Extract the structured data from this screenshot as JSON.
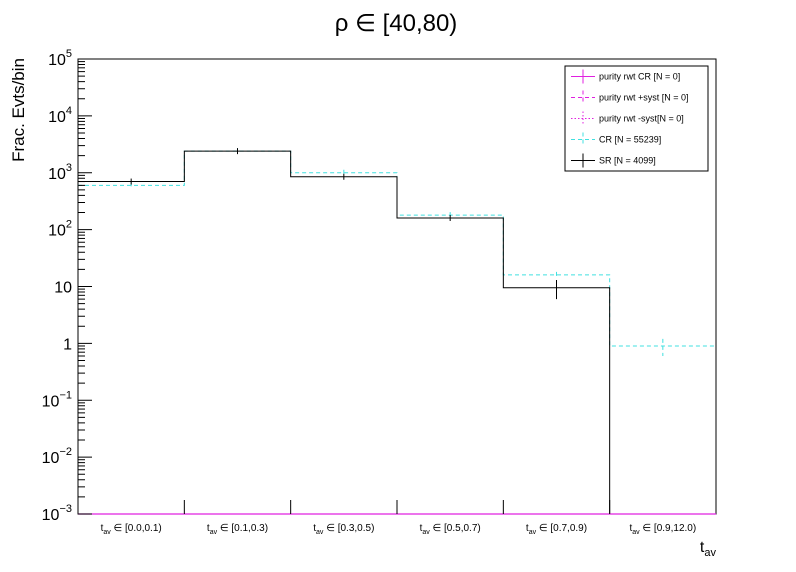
{
  "chart_data": {
    "type": "histogram",
    "title": "ρ ∈ [40,80)",
    "ylabel": "Frac. Evts/bin",
    "xlabel": "t",
    "xlabel_sub": "av",
    "y_scale": "log",
    "ylim": [
      0.001,
      100000
    ],
    "y_ticks": [
      {
        "value": 100000,
        "base": "10",
        "exp": "5"
      },
      {
        "value": 10000,
        "base": "10",
        "exp": "4"
      },
      {
        "value": 1000,
        "base": "10",
        "exp": "3"
      },
      {
        "value": 100,
        "base": "10",
        "exp": "2"
      },
      {
        "value": 10,
        "base": "10",
        "exp": ""
      },
      {
        "value": 1,
        "base": "1",
        "exp": ""
      },
      {
        "value": 0.1,
        "base": "10",
        "exp": "−1"
      },
      {
        "value": 0.01,
        "base": "10",
        "exp": "−2"
      },
      {
        "value": 0.001,
        "base": "10",
        "exp": "−3"
      }
    ],
    "categories": [
      {
        "pre": "t",
        "sub": "av",
        "post": " ∈ [0.0,0.1)"
      },
      {
        "pre": "t",
        "sub": "av",
        "post": " ∈ [0.1,0.3)"
      },
      {
        "pre": "t",
        "sub": "av",
        "post": " ∈ [0.3,0.5)"
      },
      {
        "pre": "t",
        "sub": "av",
        "post": " ∈ [0.5,0.7)"
      },
      {
        "pre": "t",
        "sub": "av",
        "post": " ∈ [0.7,0.9)"
      },
      {
        "pre": "t",
        "sub": "av",
        "post": " ∈ [0.9,12.0)"
      }
    ],
    "series": [
      {
        "name": "purity rwt CR [N = 0]",
        "color": "#e020e0",
        "style": "solid",
        "values": [
          null,
          null,
          null,
          null,
          null,
          null
        ]
      },
      {
        "name": "purity rwt +syst [N = 0]",
        "color": "#e020e0",
        "style": "dashed",
        "values": [
          null,
          null,
          null,
          null,
          null,
          null
        ]
      },
      {
        "name": "purity rwt -syst[N = 0]",
        "color": "#e020e0",
        "style": "dotted",
        "values": [
          null,
          null,
          null,
          null,
          null,
          null
        ]
      },
      {
        "name": "CR [N = 55239]",
        "color": "#40e0e0",
        "style": "dashed",
        "values": [
          600,
          2400,
          1000,
          180,
          16,
          0.9
        ],
        "errors": [
          0,
          0,
          0,
          0,
          0,
          0.3
        ]
      },
      {
        "name": "SR [N = 4099]",
        "color": "#000000",
        "style": "solid",
        "values": [
          700,
          2400,
          850,
          160,
          9.5,
          0.001
        ],
        "errors": [
          80,
          0,
          60,
          15,
          3.5,
          0
        ]
      }
    ],
    "legend_position": "top-right",
    "grid": false
  }
}
